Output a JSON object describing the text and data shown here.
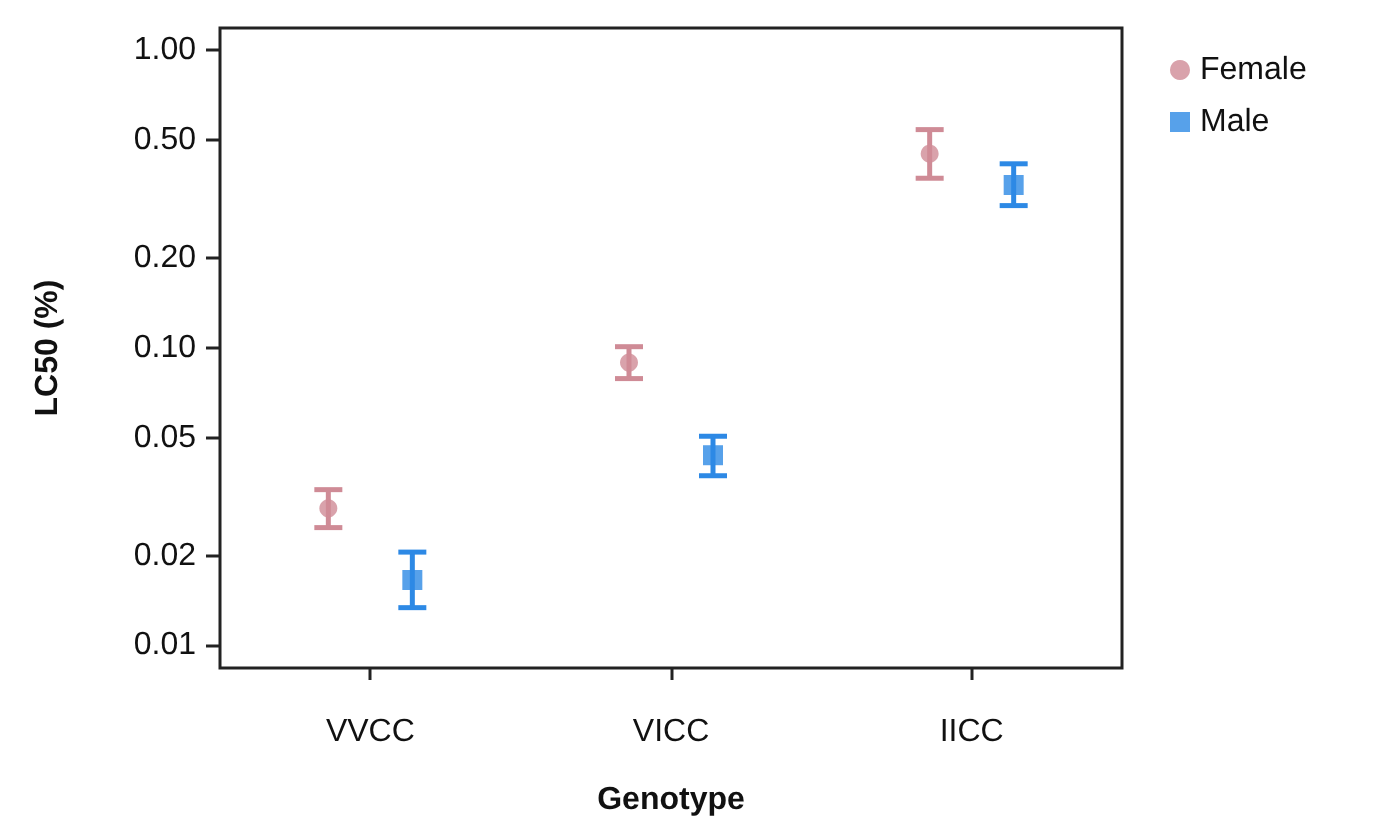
{
  "chart_data": {
    "type": "scatter",
    "xlabel": "Genotype",
    "ylabel": "LC50 (%)",
    "categories": [
      "VVCC",
      "VICC",
      "IICC"
    ],
    "series": [
      {
        "name": "Female",
        "color": "#cf8b96",
        "marker": "circle",
        "values": [
          0.0289,
          0.0893,
          0.45
        ],
        "errors": [
          [
            0.0249,
            0.0334
          ],
          [
            0.0789,
            0.101
          ],
          [
            0.372,
            0.542
          ]
        ]
      },
      {
        "name": "Male",
        "color": "#2d89e5",
        "marker": "square",
        "values": [
          0.0166,
          0.0436,
          0.353
        ],
        "errors": [
          [
            0.0134,
            0.0206
          ],
          [
            0.0372,
            0.0505
          ],
          [
            0.301,
            0.416
          ]
        ]
      }
    ],
    "log": "y",
    "ylim": [
      0.0084,
      1.19
    ],
    "yticks": [
      {
        "value": 0.01,
        "label": "0.01"
      },
      {
        "value": 0.02,
        "label": "0.02"
      },
      {
        "value": 0.05,
        "label": "0.05"
      },
      {
        "value": 0.1,
        "label": "0.10"
      },
      {
        "value": 0.2,
        "label": "0.20"
      },
      {
        "value": 0.5,
        "label": "0.50"
      },
      {
        "value": 1,
        "label": "1.00"
      }
    ],
    "grid": false,
    "legend": "top right"
  }
}
